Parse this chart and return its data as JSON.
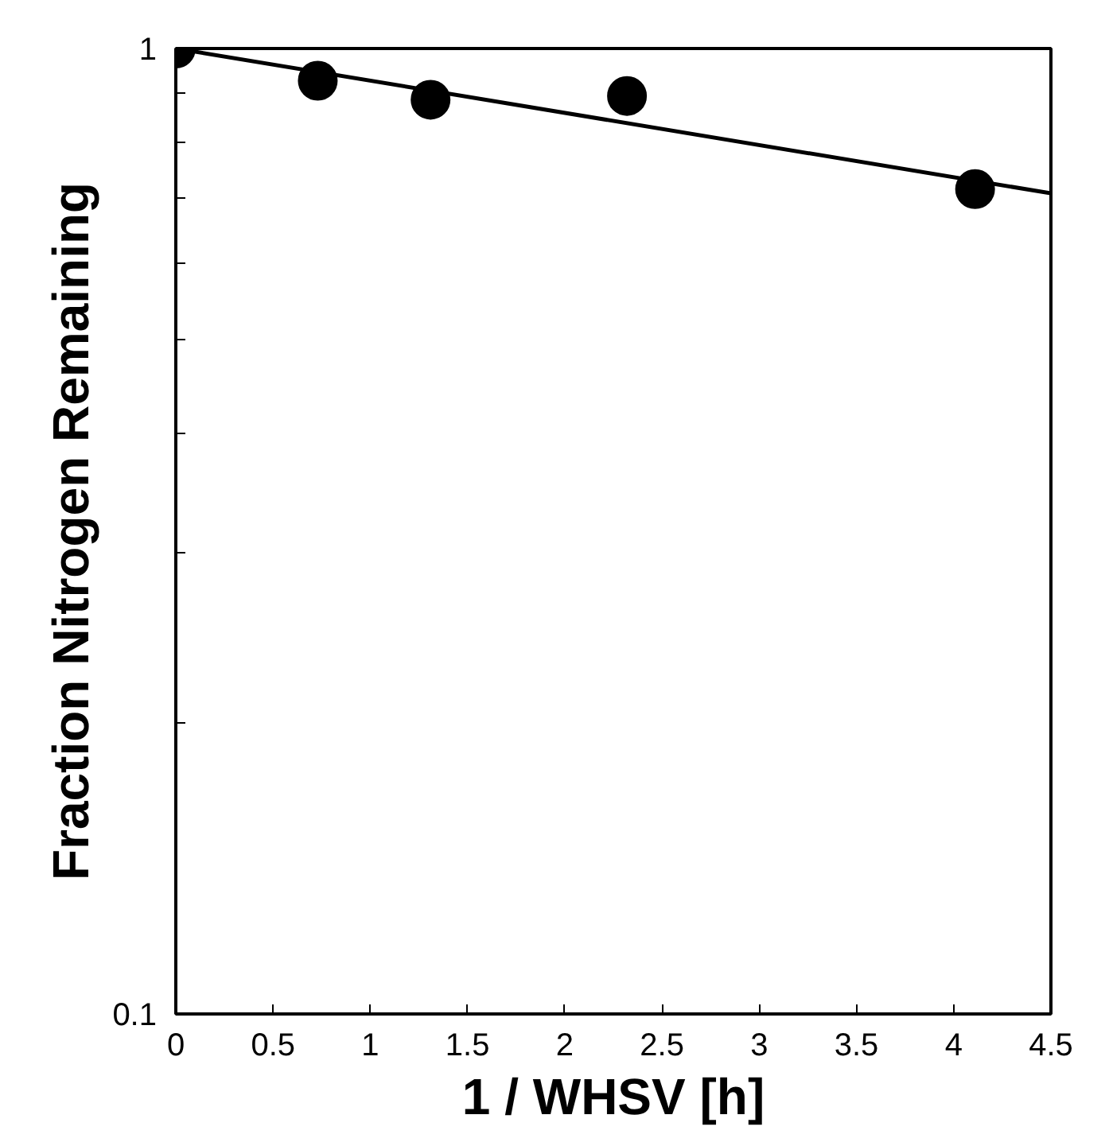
{
  "chart_data": {
    "type": "scatter",
    "xlabel": "1 / WHSV [h]",
    "ylabel": "Fraction Nitrogen Remaining",
    "log": "y",
    "xlim": [
      0,
      4.5
    ],
    "ylim": [
      0.1,
      1
    ],
    "xticks": [
      0,
      0.5,
      1,
      1.5,
      2,
      2.5,
      3,
      3.5,
      4,
      4.5
    ],
    "yticks": [
      {
        "value": 0.1,
        "label": "0.1"
      },
      {
        "value": 0.2,
        "label": null
      },
      {
        "value": 0.3,
        "label": null
      },
      {
        "value": 0.4,
        "label": null
      },
      {
        "value": 0.5,
        "label": null
      },
      {
        "value": 0.6,
        "label": null
      },
      {
        "value": 0.7,
        "label": null
      },
      {
        "value": 0.8,
        "label": null
      },
      {
        "value": 0.9,
        "label": null
      },
      {
        "value": 1,
        "label": "1"
      }
    ],
    "grid": false,
    "series": [
      {
        "color": "#000000",
        "marker": "circle",
        "x": [
          0,
          0.73,
          1.31,
          2.32,
          4.11
        ],
        "values": [
          1,
          0.926,
          0.885,
          0.893,
          0.715
        ]
      },
      {
        "type": "line",
        "color": "#000000",
        "line_style": "solid",
        "marker": "none",
        "x": [
          0,
          4.5
        ],
        "values": [
          1,
          0.708
        ]
      }
    ]
  }
}
